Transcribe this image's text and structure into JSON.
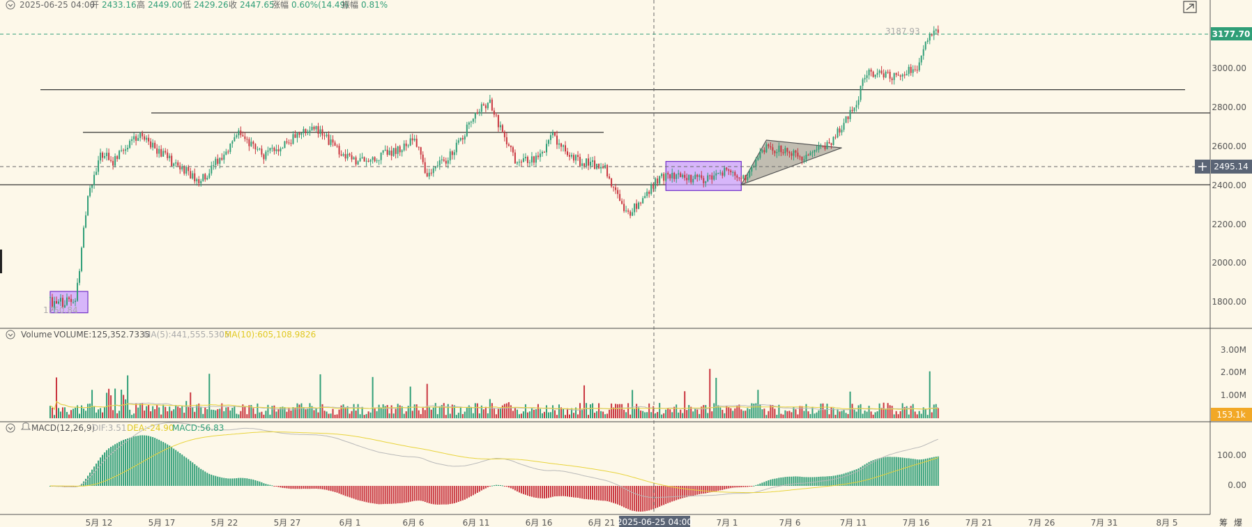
{
  "header": {
    "datetime": "2025-06-25 04:00",
    "open_label": "开",
    "open": "2433.16",
    "high_label": "高",
    "high": "2449.00",
    "low_label": "低",
    "low": "2429.26",
    "close_label": "收",
    "close": "2447.65",
    "change_label": "涨幅",
    "change": "0.60%(14.49)",
    "amplitude_label": "振幅",
    "amplitude": "0.81%"
  },
  "volume_legend": {
    "title": "Volume",
    "vol": "VOLUME:125,352.7335",
    "ma5": "MA(5):441,555.5305",
    "ma10": "MA(10):605,108.9826"
  },
  "macd_legend": {
    "title": "MACD(12,26,9)",
    "dif": "DIF:3.51",
    "dea": "DEA:-24.90",
    "macd": "MACD:56.83"
  },
  "price_axis": {
    "ticks": [
      "3000.00",
      "2800.00",
      "2600.00",
      "2400.00",
      "2200.00",
      "2000.00",
      "1800.00"
    ],
    "last_price_tag": "3177.70",
    "crosshair_price_tag": "2495.14",
    "max_label": "3187.93",
    "min_label": "1750.84"
  },
  "volume_axis": {
    "ticks": [
      "3.00M",
      "2.00M",
      "1.00M"
    ],
    "last_tag": "153.1k"
  },
  "macd_axis": {
    "ticks": [
      "100.00",
      "0.00"
    ]
  },
  "time_axis": {
    "ticks": [
      "5月 12",
      "5月 17",
      "5月 22",
      "5月 27",
      "6月 1",
      "6月 6",
      "6月 11",
      "6月 16",
      "6月 21",
      "7月 1",
      "7月 6",
      "7月 11",
      "7月 16",
      "7月 21",
      "7月 26",
      "7月 31",
      "8月 5"
    ],
    "crosshair_label": "2025-06-25 04:00"
  },
  "corner": {
    "chips": "筹",
    "burst": "爆"
  },
  "colors": {
    "background": "#fdf8e9",
    "up": "#2f9e77",
    "down": "#c9343e",
    "ma_yellow": "#e8d33a",
    "ma_gray": "#b8b8b8",
    "box_fill": "#c9a0ff",
    "box_stroke": "#6f2fc8",
    "triangle_fill": "#9a968c",
    "last_tag": "#2f9e77",
    "crosshair_tag": "#5a6475",
    "volume_tag": "#f2a826"
  },
  "chart_data": {
    "type": "candlestick",
    "symbol_interval": "4h",
    "x_range": [
      "2025-05-08",
      "2025-08-07"
    ],
    "y_range_price": [
      1650,
      3230
    ],
    "ohlc_anchors": [
      {
        "date": "2025-05-08",
        "price": 1800
      },
      {
        "date": "2025-05-09",
        "price": 1790
      },
      {
        "date": "2025-05-10",
        "price": 2350
      },
      {
        "date": "2025-05-11",
        "price": 2560
      },
      {
        "date": "2025-05-12",
        "price": 2520
      },
      {
        "date": "2025-05-14",
        "price": 2660
      },
      {
        "date": "2025-05-17",
        "price": 2500
      },
      {
        "date": "2025-05-19",
        "price": 2420
      },
      {
        "date": "2025-05-22",
        "price": 2660
      },
      {
        "date": "2025-05-24",
        "price": 2550
      },
      {
        "date": "2025-05-28",
        "price": 2700
      },
      {
        "date": "2025-05-31",
        "price": 2520
      },
      {
        "date": "2025-06-03",
        "price": 2560
      },
      {
        "date": "2025-06-05",
        "price": 2630
      },
      {
        "date": "2025-06-06",
        "price": 2450
      },
      {
        "date": "2025-06-08",
        "price": 2560
      },
      {
        "date": "2025-06-10",
        "price": 2780
      },
      {
        "date": "2025-06-11",
        "price": 2820
      },
      {
        "date": "2025-06-13",
        "price": 2520
      },
      {
        "date": "2025-06-15",
        "price": 2540
      },
      {
        "date": "2025-06-16",
        "price": 2650
      },
      {
        "date": "2025-06-18",
        "price": 2520
      },
      {
        "date": "2025-06-20",
        "price": 2500
      },
      {
        "date": "2025-06-22",
        "price": 2240
      },
      {
        "date": "2025-06-24",
        "price": 2400
      },
      {
        "date": "2025-06-25",
        "price": 2447.65
      },
      {
        "date": "2025-06-28",
        "price": 2430
      },
      {
        "date": "2025-06-30",
        "price": 2480
      },
      {
        "date": "2025-07-01",
        "price": 2410
      },
      {
        "date": "2025-07-03",
        "price": 2600
      },
      {
        "date": "2025-07-06",
        "price": 2540
      },
      {
        "date": "2025-07-08",
        "price": 2600
      },
      {
        "date": "2025-07-10",
        "price": 2800
      },
      {
        "date": "2025-07-11",
        "price": 2980
      },
      {
        "date": "2025-07-13",
        "price": 2960
      },
      {
        "date": "2025-07-15",
        "price": 3000
      },
      {
        "date": "2025-07-16",
        "price": 3177.7
      }
    ],
    "horizontal_lines": [
      2890,
      2770,
      2670,
      2400,
      3177.7
    ],
    "rectangles": [
      {
        "from": "2025-05-07",
        "to": "2025-05-10",
        "low": 1740,
        "high": 1850
      },
      {
        "from": "2025-06-25",
        "to": "2025-07-01",
        "low": 2370,
        "high": 2520
      }
    ],
    "triangle": [
      {
        "date": "2025-07-01",
        "price": 2400
      },
      {
        "date": "2025-07-03",
        "price": 2630
      },
      {
        "date": "2025-07-09",
        "price": 2590
      }
    ],
    "volume_max": 3500000,
    "macd_range": [
      -150,
      200
    ]
  }
}
